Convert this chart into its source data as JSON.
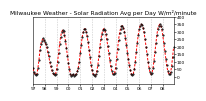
{
  "title": "Milwaukee Weather - Solar Radiation Avg per Day W/m²/minute",
  "line_color": "#ff0000",
  "dot_color": "#000000",
  "bg_color": "#ffffff",
  "grid_color": "#999999",
  "ylim": [
    -50,
    400
  ],
  "yticks": [
    0,
    50,
    100,
    150,
    200,
    250,
    300,
    350,
    400
  ],
  "ytick_labels": [
    "0",
    "50",
    "100",
    "150",
    "200",
    "250",
    "300",
    "350",
    "400"
  ],
  "values": [
    55,
    30,
    15,
    10,
    20,
    60,
    110,
    175,
    220,
    240,
    255,
    245,
    230,
    215,
    195,
    165,
    135,
    100,
    70,
    45,
    25,
    15,
    10,
    20,
    50,
    100,
    155,
    215,
    265,
    295,
    310,
    305,
    280,
    240,
    190,
    140,
    90,
    50,
    20,
    5,
    10,
    15,
    5,
    10,
    20,
    35,
    60,
    100,
    155,
    210,
    265,
    295,
    315,
    320,
    300,
    270,
    230,
    180,
    130,
    80,
    45,
    20,
    10,
    5,
    15,
    40,
    80,
    140,
    200,
    250,
    285,
    310,
    320,
    310,
    285,
    250,
    205,
    160,
    110,
    70,
    40,
    20,
    15,
    25,
    60,
    120,
    185,
    245,
    290,
    320,
    335,
    340,
    325,
    300,
    260,
    210,
    160,
    115,
    75,
    45,
    20,
    10,
    20,
    50,
    100,
    165,
    225,
    275,
    315,
    340,
    350,
    345,
    325,
    295,
    250,
    200,
    150,
    100,
    60,
    30,
    15,
    25,
    55,
    105,
    165,
    225,
    280,
    320,
    340,
    350,
    340,
    315,
    275,
    225,
    170,
    120,
    75,
    40,
    20,
    15,
    30,
    70,
    130,
    195
  ],
  "xtick_positions": [
    0,
    12,
    24,
    36,
    48,
    60,
    72,
    84,
    96,
    108,
    120,
    132
  ],
  "xtick_labels": [
    "97",
    "98",
    "99",
    "00",
    "01",
    "02",
    "03",
    "04",
    "05",
    "06",
    "07",
    "08"
  ],
  "title_fontsize": 4.2,
  "tick_fontsize": 3.2
}
